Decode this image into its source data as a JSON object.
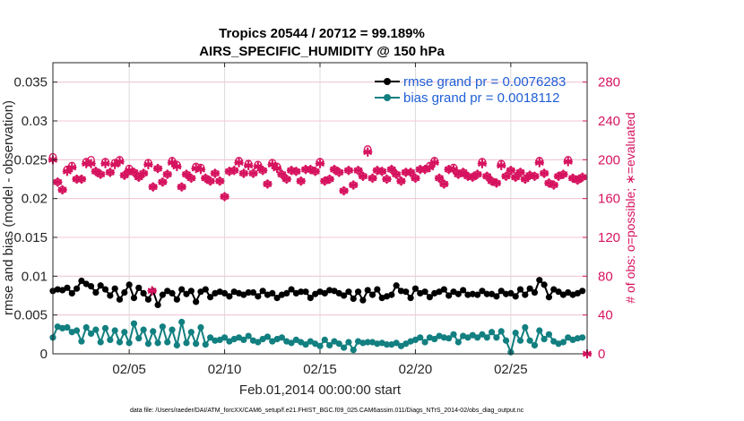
{
  "chart_data": {
    "type": "line",
    "title": "Tropics 20544 / 20712 = 99.189%",
    "subtitle": "AIRS_SPECIFIC_HUMIDITY @ 150 hPa",
    "xlabel": "Feb.01,2014 00:00:00 start",
    "ylabel": "rmse and bias (model - observation)",
    "y2label": "# of obs: o=possible; ∗=evaluated",
    "xlim": [
      1,
      29
    ],
    "ylim": [
      0,
      0.0375
    ],
    "y2lim": [
      0,
      300
    ],
    "xticks": [
      5,
      10,
      15,
      20,
      25
    ],
    "xtick_labels": [
      "02/05",
      "02/10",
      "02/15",
      "02/20",
      "02/25"
    ],
    "yticks": [
      0,
      0.005,
      0.01,
      0.015,
      0.02,
      0.025,
      0.03,
      0.035
    ],
    "ytick_labels": [
      "0",
      "0.005",
      "0.01",
      "0.015",
      "0.02",
      "0.025",
      "0.03",
      "0.035"
    ],
    "y2ticks": [
      0,
      40,
      80,
      120,
      160,
      200,
      240,
      280
    ],
    "y2tick_labels": [
      "0",
      "40",
      "80",
      "120",
      "160",
      "200",
      "240",
      "280"
    ],
    "grid": true,
    "legend_position": "top-right",
    "series": [
      {
        "name": "rmse grand pr = 0.0076283",
        "color": "#000000",
        "axis": "left",
        "x": [
          1.0,
          1.25,
          1.5,
          1.75,
          2.0,
          2.25,
          2.5,
          2.75,
          3.0,
          3.25,
          3.5,
          3.75,
          4.0,
          4.25,
          4.5,
          4.75,
          5.0,
          5.25,
          5.5,
          5.75,
          6.0,
          6.25,
          6.5,
          6.75,
          7.0,
          7.25,
          7.5,
          7.75,
          8.0,
          8.25,
          8.5,
          8.75,
          9.0,
          9.25,
          9.5,
          9.75,
          10.0,
          10.25,
          10.5,
          10.75,
          11.0,
          11.25,
          11.5,
          11.75,
          12.0,
          12.25,
          12.5,
          12.75,
          13.0,
          13.25,
          13.5,
          13.75,
          14.0,
          14.25,
          14.5,
          14.75,
          15.0,
          15.25,
          15.5,
          15.75,
          16.0,
          16.25,
          16.5,
          16.75,
          17.0,
          17.25,
          17.5,
          17.75,
          18.0,
          18.25,
          18.5,
          18.75,
          19.0,
          19.25,
          19.5,
          19.75,
          20.0,
          20.25,
          20.5,
          20.75,
          21.0,
          21.25,
          21.5,
          21.75,
          22.0,
          22.25,
          22.5,
          22.75,
          23.0,
          23.25,
          23.5,
          23.75,
          24.0,
          24.25,
          24.5,
          24.75,
          25.0,
          25.25,
          25.5,
          25.75,
          26.0,
          26.25,
          26.5,
          26.75,
          27.0,
          27.25,
          27.5,
          27.75,
          28.0,
          28.25,
          28.5,
          28.75
        ],
        "values": [
          0.0081,
          0.0083,
          0.0082,
          0.0085,
          0.0078,
          0.0084,
          0.0094,
          0.009,
          0.0087,
          0.0079,
          0.0088,
          0.0083,
          0.0075,
          0.0084,
          0.007,
          0.0079,
          0.0089,
          0.0072,
          0.0085,
          0.0078,
          0.007,
          0.0081,
          0.0063,
          0.0076,
          0.0081,
          0.0078,
          0.007,
          0.0083,
          0.0077,
          0.0081,
          0.0067,
          0.008,
          0.0083,
          0.0073,
          0.0078,
          0.008,
          0.0078,
          0.0074,
          0.008,
          0.0078,
          0.0076,
          0.0079,
          0.0079,
          0.0074,
          0.0081,
          0.0076,
          0.0078,
          0.0072,
          0.0076,
          0.0078,
          0.0083,
          0.0078,
          0.008,
          0.008,
          0.0072,
          0.0077,
          0.008,
          0.0078,
          0.0082,
          0.0081,
          0.0078,
          0.0075,
          0.008,
          0.0071,
          0.008,
          0.0069,
          0.0082,
          0.0076,
          0.0083,
          0.0072,
          0.0074,
          0.0076,
          0.0088,
          0.0081,
          0.008,
          0.0072,
          0.0084,
          0.0078,
          0.008,
          0.0073,
          0.0078,
          0.008,
          0.0083,
          0.0075,
          0.008,
          0.0077,
          0.0082,
          0.0076,
          0.0077,
          0.0076,
          0.0081,
          0.0077,
          0.0077,
          0.0074,
          0.0081,
          0.0077,
          0.0078,
          0.0074,
          0.0083,
          0.0076,
          0.0084,
          0.0079,
          0.0095,
          0.0089,
          0.0073,
          0.0083,
          0.008,
          0.0076,
          0.0079,
          0.0076,
          0.0078,
          0.0081
        ]
      },
      {
        "name": "bias grand pr = 0.0018112",
        "color": "#127f80",
        "axis": "left",
        "x": [
          1.0,
          1.25,
          1.5,
          1.75,
          2.0,
          2.25,
          2.5,
          2.75,
          3.0,
          3.25,
          3.5,
          3.75,
          4.0,
          4.25,
          4.5,
          4.75,
          5.0,
          5.25,
          5.5,
          5.75,
          6.0,
          6.25,
          6.5,
          6.75,
          7.0,
          7.25,
          7.5,
          7.75,
          8.0,
          8.25,
          8.5,
          8.75,
          9.0,
          9.25,
          9.5,
          9.75,
          10.0,
          10.25,
          10.5,
          10.75,
          11.0,
          11.25,
          11.5,
          11.75,
          12.0,
          12.25,
          12.5,
          12.75,
          13.0,
          13.25,
          13.5,
          13.75,
          14.0,
          14.25,
          14.5,
          14.75,
          15.0,
          15.25,
          15.5,
          15.75,
          16.0,
          16.25,
          16.5,
          16.75,
          17.0,
          17.25,
          17.5,
          17.75,
          18.0,
          18.25,
          18.5,
          18.75,
          19.0,
          19.25,
          19.5,
          19.75,
          20.0,
          20.25,
          20.5,
          20.75,
          21.0,
          21.25,
          21.5,
          21.75,
          22.0,
          22.25,
          22.5,
          22.75,
          23.0,
          23.25,
          23.5,
          23.75,
          24.0,
          24.25,
          24.5,
          24.75,
          25.0,
          25.25,
          25.5,
          25.75,
          26.0,
          26.25,
          26.5,
          26.75,
          27.0,
          27.25,
          27.5,
          27.75,
          28.0,
          28.25,
          28.5,
          28.75
        ],
        "values": [
          0.0021,
          0.0035,
          0.0033,
          0.0034,
          0.0028,
          0.003,
          0.0016,
          0.0034,
          0.0026,
          0.0031,
          0.0015,
          0.0033,
          0.0018,
          0.003,
          0.0015,
          0.0028,
          0.0014,
          0.0039,
          0.002,
          0.0031,
          0.0013,
          0.0029,
          0.0014,
          0.0035,
          0.0015,
          0.0031,
          0.0011,
          0.0041,
          0.0014,
          0.0028,
          0.0013,
          0.0034,
          0.0012,
          0.0021,
          0.0017,
          0.0018,
          0.0021,
          0.0016,
          0.0019,
          0.0021,
          0.0018,
          0.0023,
          0.0017,
          0.0015,
          0.0019,
          0.0022,
          0.0016,
          0.0019,
          0.0021,
          0.0016,
          0.0014,
          0.0018,
          0.0015,
          0.0012,
          0.0016,
          0.0013,
          0.001,
          0.0018,
          0.0011,
          0.0016,
          0.0013,
          0.0008,
          0.0015,
          0.0005,
          0.0016,
          0.0014,
          0.0015,
          0.0015,
          0.0013,
          0.0014,
          0.0012,
          0.0012,
          0.0014,
          0.001,
          0.0013,
          0.0016,
          0.0018,
          0.0021,
          0.0015,
          0.0021,
          0.0019,
          0.0023,
          0.0021,
          0.002,
          0.0025,
          0.0015,
          0.0023,
          0.0021,
          0.0024,
          0.0021,
          0.0025,
          0.0021,
          0.0028,
          0.0021,
          0.0029,
          0.0017,
          0.0002,
          0.0027,
          0.0017,
          0.0034,
          0.0017,
          0.0011,
          0.003,
          0.0019,
          0.0025,
          0.0016,
          0.0013,
          0.0015,
          0.0021,
          0.0018,
          0.002,
          0.0021
        ]
      },
      {
        "name": "obs possible",
        "color": "#d6135f",
        "marker": "o",
        "axis": "right",
        "x": [
          1.0,
          1.25,
          1.5,
          1.75,
          2.0,
          2.25,
          2.5,
          2.75,
          3.0,
          3.25,
          3.5,
          3.75,
          4.0,
          4.25,
          4.5,
          4.75,
          5.0,
          5.25,
          5.5,
          5.75,
          6.0,
          6.25,
          6.5,
          6.75,
          7.0,
          7.25,
          7.5,
          7.75,
          8.0,
          8.25,
          8.5,
          8.75,
          9.0,
          9.25,
          9.5,
          9.75,
          10.0,
          10.25,
          10.5,
          10.75,
          11.0,
          11.25,
          11.5,
          11.75,
          12.0,
          12.25,
          12.5,
          12.75,
          13.0,
          13.25,
          13.5,
          13.75,
          14.0,
          14.25,
          14.5,
          14.75,
          15.0,
          15.25,
          15.5,
          15.75,
          16.0,
          16.25,
          16.5,
          16.75,
          17.0,
          17.25,
          17.5,
          17.75,
          18.0,
          18.25,
          18.5,
          18.75,
          19.0,
          19.25,
          19.5,
          19.75,
          20.0,
          20.25,
          20.5,
          20.75,
          21.0,
          21.25,
          21.5,
          21.75,
          22.0,
          22.25,
          22.5,
          22.75,
          23.0,
          23.25,
          23.5,
          23.75,
          24.0,
          24.25,
          24.5,
          24.75,
          25.0,
          25.25,
          25.5,
          25.75,
          26.0,
          26.25,
          26.5,
          26.75,
          27.0,
          27.25,
          27.5,
          27.75,
          28.0,
          28.25,
          28.5,
          28.75
        ],
        "values": [
          203,
          177,
          169,
          190,
          194,
          180,
          180,
          198,
          200,
          188,
          185,
          198,
          187,
          197,
          200,
          184,
          191,
          187,
          182,
          186,
          197,
          172,
          191,
          177,
          185,
          199,
          195,
          172,
          185,
          181,
          193,
          192,
          181,
          178,
          186,
          178,
          162,
          188,
          189,
          199,
          186,
          196,
          186,
          195,
          189,
          175,
          197,
          193,
          185,
          180,
          189,
          188,
          178,
          190,
          190,
          188,
          198,
          178,
          180,
          190,
          187,
          168,
          189,
          174,
          189,
          183,
          211,
          181,
          189,
          188,
          180,
          190,
          185,
          178,
          187,
          187,
          181,
          190,
          190,
          194,
          199,
          181,
          175,
          190,
          192,
          185,
          187,
          183,
          182,
          185,
          198,
          183,
          178,
          176,
          196,
          183,
          189,
          182,
          187,
          180,
          184,
          183,
          199,
          186,
          176,
          174,
          183,
          185,
          200,
          181,
          179,
          182
        ]
      },
      {
        "name": "obs evaluated",
        "color": "#d6135f",
        "marker": "*",
        "axis": "right",
        "x": [
          1.0,
          1.25,
          1.5,
          1.75,
          2.0,
          2.25,
          2.5,
          2.75,
          3.0,
          3.25,
          3.5,
          3.75,
          4.0,
          4.25,
          4.5,
          4.75,
          5.0,
          5.25,
          5.5,
          5.75,
          6.0,
          6.25,
          6.5,
          6.75,
          7.0,
          7.25,
          7.5,
          7.75,
          8.0,
          8.25,
          8.5,
          8.75,
          9.0,
          9.25,
          9.5,
          9.75,
          10.0,
          10.25,
          10.5,
          10.75,
          11.0,
          11.25,
          11.5,
          11.75,
          12.0,
          12.25,
          12.5,
          12.75,
          13.0,
          13.25,
          13.5,
          13.75,
          14.0,
          14.25,
          14.5,
          14.75,
          15.0,
          15.25,
          15.5,
          15.75,
          16.0,
          16.25,
          16.5,
          16.75,
          17.0,
          17.25,
          17.5,
          17.75,
          18.0,
          18.25,
          18.5,
          18.75,
          19.0,
          19.25,
          19.5,
          19.75,
          20.0,
          20.25,
          20.5,
          20.75,
          21.0,
          21.25,
          21.5,
          21.75,
          22.0,
          22.25,
          22.5,
          22.75,
          23.0,
          23.25,
          23.5,
          23.75,
          24.0,
          24.25,
          24.5,
          24.75,
          25.0,
          25.25,
          25.5,
          25.75,
          26.0,
          26.25,
          26.5,
          26.75,
          27.0,
          27.25,
          27.5,
          27.75,
          28.0,
          28.25,
          28.5,
          28.75
        ],
        "values": [
          200,
          177,
          169,
          188,
          192,
          180,
          180,
          196,
          196,
          188,
          185,
          196,
          187,
          195,
          198,
          184,
          189,
          187,
          182,
          186,
          195,
          172,
          191,
          177,
          185,
          197,
          193,
          172,
          185,
          181,
          191,
          190,
          181,
          178,
          186,
          178,
          162,
          188,
          189,
          197,
          186,
          194,
          186,
          193,
          189,
          175,
          195,
          191,
          185,
          180,
          189,
          188,
          178,
          190,
          190,
          188,
          196,
          178,
          180,
          190,
          187,
          168,
          189,
          174,
          189,
          183,
          208,
          181,
          189,
          188,
          180,
          190,
          185,
          178,
          187,
          187,
          181,
          190,
          190,
          192,
          197,
          181,
          175,
          190,
          190,
          185,
          187,
          183,
          182,
          185,
          196,
          183,
          178,
          176,
          194,
          183,
          189,
          182,
          187,
          180,
          184,
          183,
          197,
          186,
          176,
          174,
          183,
          185,
          198,
          181,
          179,
          182
        ]
      },
      {
        "name": "obs outliers",
        "color": "#d6135f",
        "marker": "*",
        "axis": "right",
        "x": [
          6.2,
          29.0
        ],
        "values": [
          65,
          0
        ]
      }
    ]
  },
  "footnote": "data file: /Users/raeder/DAI/ATM_forcXX/CAM6_setup/f.e21.FHIST_BGC.f09_025.CAM6assim.011/Diags_NTrS_2014-02/obs_diag_output.nc"
}
